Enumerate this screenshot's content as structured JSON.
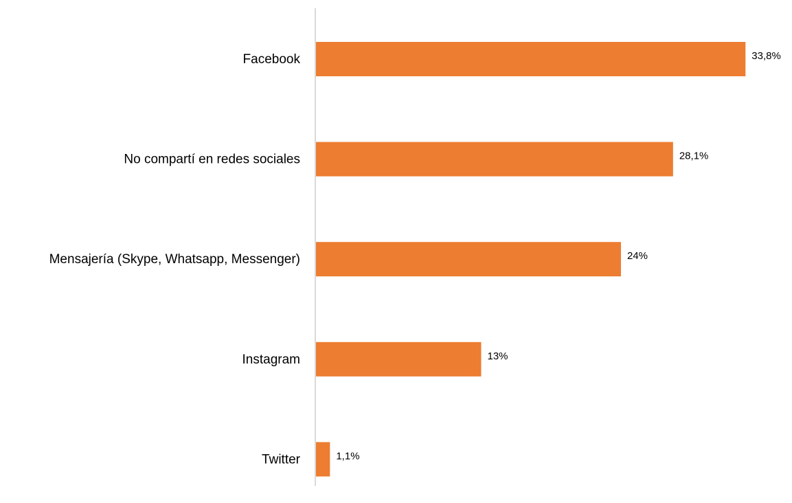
{
  "chart_data": {
    "type": "bar",
    "orientation": "horizontal",
    "categories": [
      "Facebook",
      "No compartí en redes sociales",
      "Mensajería (Skype, Whatsapp, Messenger)",
      "Instagram",
      "Twitter"
    ],
    "values": [
      33.8,
      28.1,
      24,
      13,
      1.1
    ],
    "value_labels": [
      "33,8%",
      "28,1%",
      "24%",
      "13%",
      "1,1%"
    ],
    "title": "",
    "xlabel": "",
    "ylabel": "",
    "xlim": [
      0,
      35
    ],
    "grid": false,
    "legend": "none",
    "bar_color": "#ED7D31",
    "axis_color": "#D9D9D9"
  }
}
